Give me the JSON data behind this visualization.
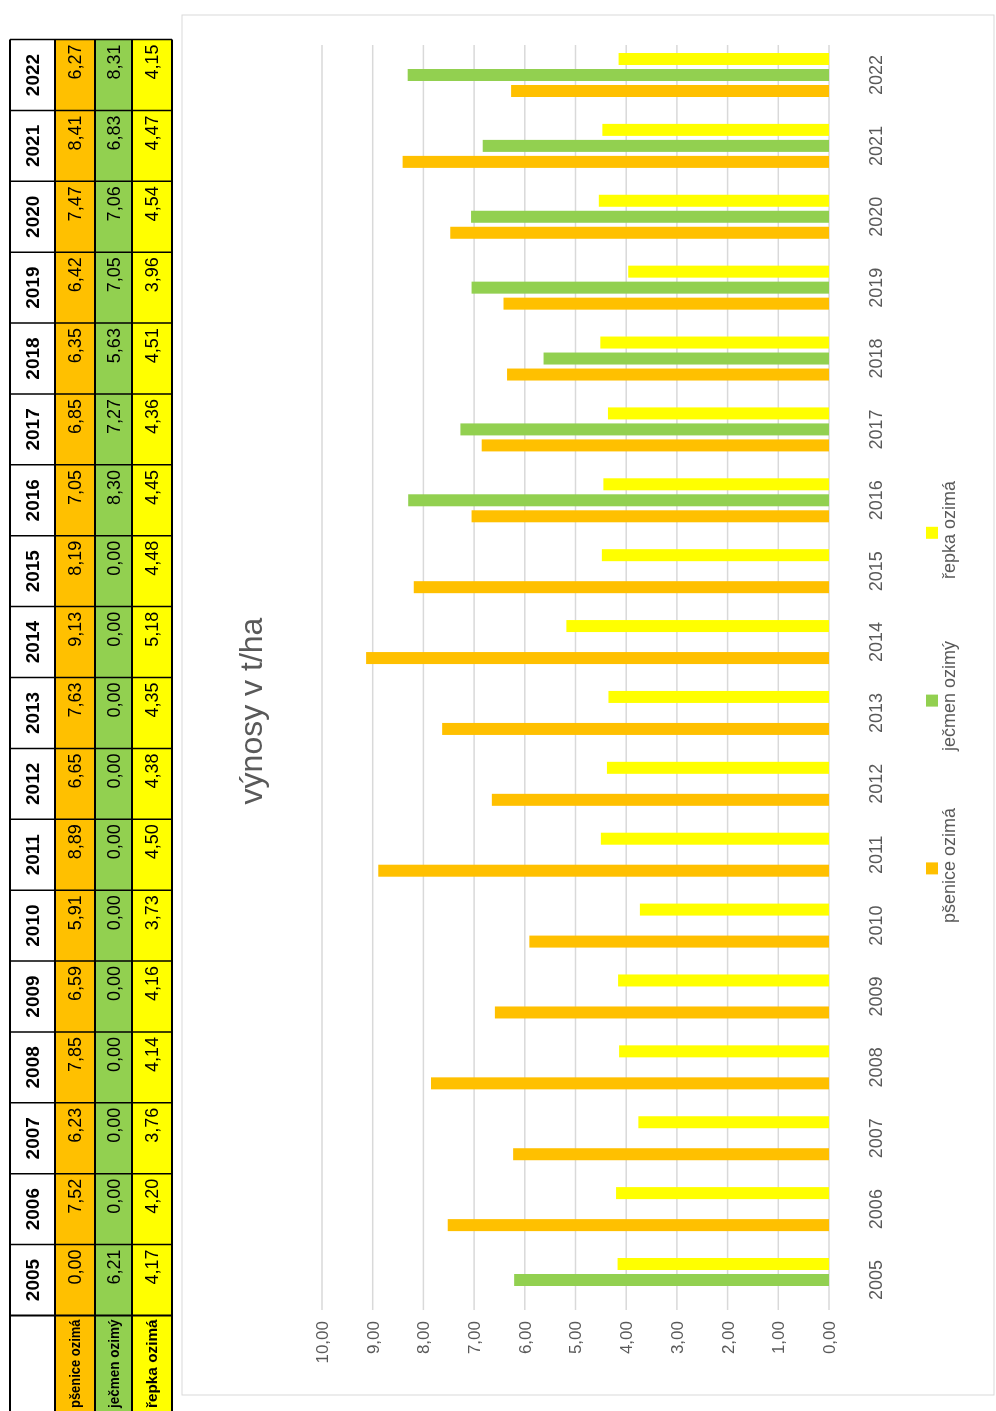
{
  "chart_data": {
    "type": "bar",
    "orientation": "horizontal",
    "title": "výnosy v t/ha",
    "categories": [
      "2022",
      "2021",
      "2020",
      "2019",
      "2018",
      "2017",
      "2016",
      "2015",
      "2014",
      "2013",
      "2012",
      "2011",
      "2010",
      "2009",
      "2008",
      "2007",
      "2006",
      "2005"
    ],
    "series": [
      {
        "name": "pšenice ozimá",
        "color": "#ffc000",
        "values": [
          6.27,
          8.41,
          7.47,
          6.42,
          6.35,
          6.85,
          7.05,
          8.19,
          9.13,
          7.63,
          6.65,
          8.89,
          5.91,
          6.59,
          7.85,
          6.23,
          7.52,
          0.0
        ],
        "value_labels": [
          "6,27",
          "8,41",
          "7,47",
          "6,42",
          "6,35",
          "6,85",
          "7,05",
          "8,19",
          "9,13",
          "7,63",
          "6,65",
          "8,89",
          "5,91",
          "6,59",
          "7,85",
          "6,23",
          "7,52",
          "0,00"
        ]
      },
      {
        "name": "ječmen ozimý",
        "color": "#92d050",
        "values": [
          8.31,
          6.83,
          7.06,
          7.05,
          5.63,
          7.27,
          8.3,
          0.0,
          0.0,
          0.0,
          0.0,
          0.0,
          0.0,
          0.0,
          0.0,
          0.0,
          0.0,
          6.21
        ],
        "value_labels": [
          "8,31",
          "6,83",
          "7,06",
          "7,05",
          "5,63",
          "7,27",
          "8,30",
          "0,00",
          "0,00",
          "0,00",
          "0,00",
          "0,00",
          "0,00",
          "0,00",
          "0,00",
          "0,00",
          "0,00",
          "6,21"
        ]
      },
      {
        "name": "řepka ozimá",
        "color": "#ffff00",
        "values": [
          4.15,
          4.47,
          4.54,
          3.96,
          4.51,
          4.36,
          4.45,
          4.48,
          5.18,
          4.35,
          4.38,
          4.5,
          3.73,
          4.16,
          4.14,
          3.76,
          4.2,
          4.17
        ],
        "value_labels": [
          "4,15",
          "4,47",
          "4,54",
          "3,96",
          "4,51",
          "4,36",
          "4,45",
          "4,48",
          "5,18",
          "4,35",
          "4,38",
          "4,50",
          "3,73",
          "4,16",
          "4,14",
          "3,76",
          "4,20",
          "4,17"
        ]
      }
    ],
    "xlim": [
      10,
      0
    ],
    "xticks": [
      {
        "value": 10,
        "label": "10,00"
      },
      {
        "value": 9,
        "label": "9,00"
      },
      {
        "value": 8,
        "label": "8,00"
      },
      {
        "value": 7,
        "label": "7,00"
      },
      {
        "value": 6,
        "label": "6,00"
      },
      {
        "value": 5,
        "label": "5,00"
      },
      {
        "value": 4,
        "label": "4,00"
      },
      {
        "value": 3,
        "label": "3,00"
      },
      {
        "value": 2,
        "label": "2,00"
      },
      {
        "value": 1,
        "label": "1,00"
      },
      {
        "value": 0,
        "label": "0,00"
      }
    ],
    "grid": "x",
    "legend": "right"
  }
}
